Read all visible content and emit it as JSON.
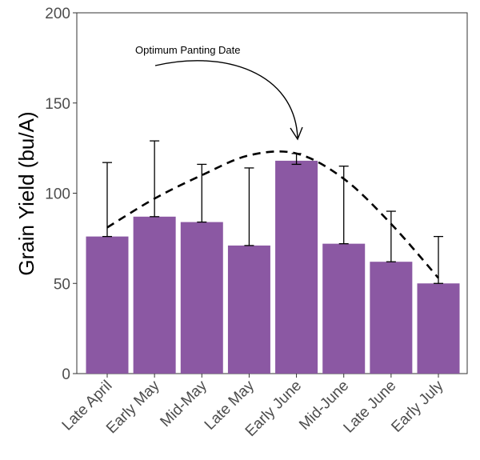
{
  "chart_data": {
    "type": "bar",
    "title": "",
    "xlabel": "",
    "ylabel": "Grain Yield (bu/A)",
    "ylim": [
      0,
      200
    ],
    "yticks": [
      0,
      50,
      100,
      150,
      200
    ],
    "grid": false,
    "categories": [
      "Late April",
      "Early May",
      "Mid-May",
      "Late May",
      "Early June",
      "Mid-June",
      "Late June",
      "Early July"
    ],
    "values": [
      76,
      87,
      84,
      71,
      118,
      72,
      62,
      50
    ],
    "error_upper": [
      117,
      129,
      116,
      114,
      122,
      115,
      90,
      76
    ],
    "error_lower": [
      76,
      87,
      84,
      71,
      116,
      72,
      62,
      50
    ],
    "bar_color": "#8b58a3",
    "trend_line": {
      "style": "dashed",
      "color": "#000000",
      "points": [
        {
          "category": "Late April",
          "value": 81
        },
        {
          "category": "Early May",
          "value": 97
        },
        {
          "category": "Mid-May",
          "value": 110
        },
        {
          "category": "Late May",
          "value": 121
        },
        {
          "category": "Early June",
          "value": 122
        },
        {
          "category": "Mid-June",
          "value": 108
        },
        {
          "category": "Late June",
          "value": 83
        },
        {
          "category": "Early July",
          "value": 53
        }
      ]
    },
    "annotation": {
      "text": "Optimum Panting Date",
      "points_to": "Early June"
    }
  }
}
